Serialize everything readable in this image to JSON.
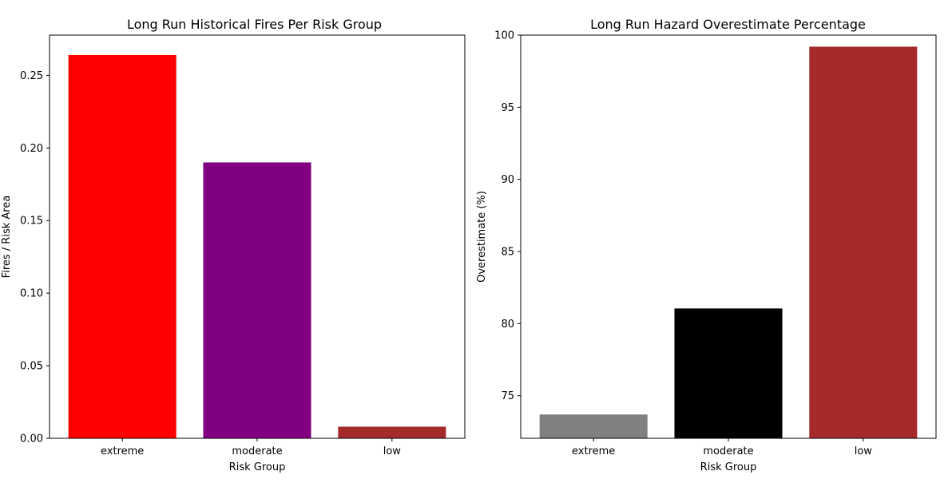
{
  "chart_data": [
    {
      "type": "bar",
      "title": "Long Run Historical Fires Per Risk Group",
      "xlabel": "Risk Group",
      "ylabel": "Fires / Risk Area",
      "categories": [
        "extreme",
        "moderate",
        "low"
      ],
      "values": [
        0.264,
        0.19,
        0.008
      ],
      "colors": [
        "#ff0000",
        "#800080",
        "#a52a2a"
      ],
      "ylim": [
        0,
        0.2777
      ],
      "yticks": [
        0.0,
        0.05,
        0.1,
        0.15,
        0.2,
        0.25
      ],
      "ytick_labels": [
        "0.00",
        "0.05",
        "0.10",
        "0.15",
        "0.20",
        "0.25"
      ],
      "grid": false
    },
    {
      "type": "bar",
      "title": "Long Run Hazard Overestimate Percentage",
      "xlabel": "Risk Group",
      "ylabel": "Overestimate (%)",
      "categories": [
        "extreme",
        "moderate",
        "low"
      ],
      "values": [
        73.7,
        81.05,
        99.2
      ],
      "colors": [
        "#808080",
        "#000000",
        "#a52a2a"
      ],
      "ylim": [
        72.05,
        100
      ],
      "yticks": [
        75,
        80,
        85,
        90,
        95,
        100
      ],
      "ytick_labels": [
        "75",
        "80",
        "85",
        "90",
        "95",
        "100"
      ],
      "grid": false
    }
  ]
}
